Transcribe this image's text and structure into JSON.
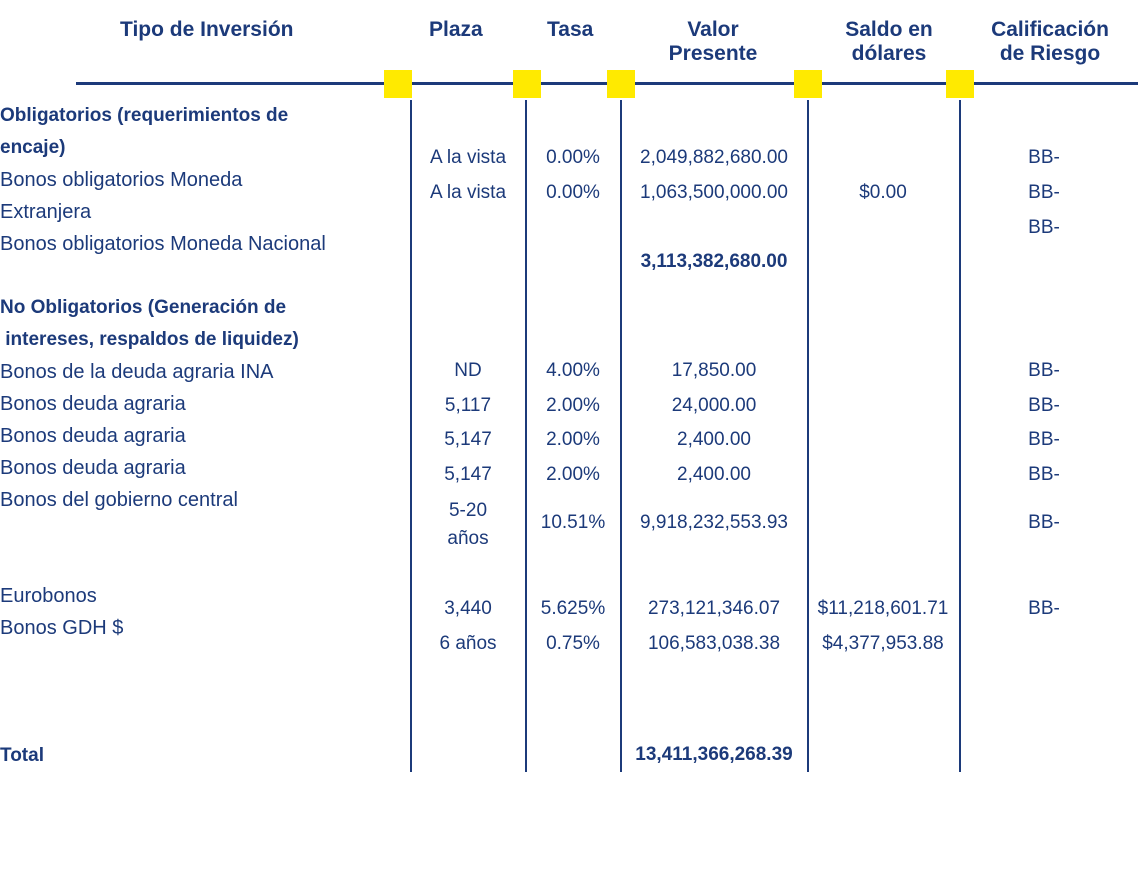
{
  "headers": {
    "tipo": "Tipo de  Inversión",
    "plaza": "Plaza",
    "tasa": "Tasa",
    "valor_l1": "Valor",
    "valor_l2": "Presente",
    "saldo_l1": "Saldo en",
    "saldo_l2": "dólares",
    "calif_l1": "Calificación",
    "calif_l2": "de Riesgo"
  },
  "labels": {
    "oblig_l1": "Obligatorios (requerimientos de",
    "oblig_l2": "encaje)",
    "bom_ext_l1": "Bonos obligatorios Moneda",
    "bom_ext_l2": "Extranjera",
    "bom_nac": "Bonos obligatorios Moneda Nacional",
    "nooblig_l1": "No Obligatorios (Generación de",
    "nooblig_l2": " intereses, respaldos de liquidez)",
    "ina": "Bonos de la deuda agraria INA",
    "agraria1": "Bonos deuda agraria",
    "agraria2": "Bonos deuda agraria",
    "agraria3": "Bonos deuda agraria",
    "gobierno": "Bonos del gobierno central",
    "eurobonos": "Eurobonos",
    "gdh": "Bonos GDH $",
    "total": "Total"
  },
  "cells": {
    "r1_plaza": "A la vista",
    "r1_tasa": "0.00%",
    "r1_valor": "2,049,882,680.00",
    "r1_calif": "BB-",
    "r2_plaza": "A la vista",
    "r2_tasa": "0.00%",
    "r2_valor": "1,063,500,000.00",
    "r2_saldo": "$0.00",
    "r2_calif": "BB-",
    "r3_calif": "BB-",
    "subtotal": "3,113,382,680.00",
    "ina_plaza": "ND",
    "ina_tasa": "4.00%",
    "ina_valor": "17,850.00",
    "ina_calif": "BB-",
    "a1_plaza": "5,117",
    "a1_tasa": "2.00%",
    "a1_valor": "24,000.00",
    "a1_calif": "BB-",
    "a2_plaza": "5,147",
    "a2_tasa": "2.00%",
    "a2_valor": "2,400.00",
    "a2_calif": "BB-",
    "a3_plaza": "5,147",
    "a3_tasa": "2.00%",
    "a3_valor": "2,400.00",
    "a3_calif": "BB-",
    "gob_plaza_l1": "5-20",
    "gob_plaza_l2": "años",
    "gob_tasa": "10.51%",
    "gob_valor": "9,918,232,553.93",
    "gob_calif": "BB-",
    "euro_plaza": "3,440",
    "euro_tasa": "5.625%",
    "euro_valor": "273,121,346.07",
    "euro_saldo": "$11,218,601.71",
    "euro_calif": "BB-",
    "gdh_plaza": "6 años",
    "gdh_tasa": "0.75%",
    "gdh_valor": "106,583,038.38",
    "gdh_saldo": "$4,377,953.88",
    "total_valor": "13,411,366,268.39"
  },
  "colors": {
    "text": "#1c3a7a",
    "marker": "#ffea00"
  }
}
